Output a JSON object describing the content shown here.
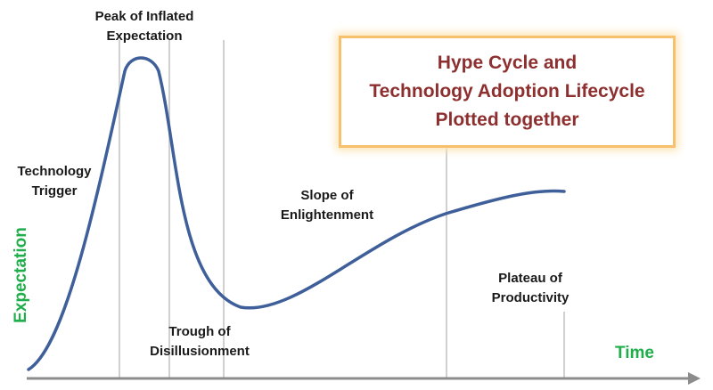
{
  "phases": {
    "peak": [
      "Peak of Inflated",
      "Expectation"
    ],
    "trigger": [
      "Technology",
      "Trigger"
    ],
    "trough": [
      "Trough of",
      "Disillusionment"
    ],
    "slope": [
      "Slope of",
      "Enlightenment"
    ],
    "plateau": [
      "Plateau of",
      "Productivity"
    ]
  },
  "title": [
    "Hype Cycle and",
    "Technology Adoption Lifecycle",
    "Plotted together"
  ],
  "axes": {
    "x": "Time",
    "y": "Expectation"
  },
  "colors": {
    "curve": "#3e5f99",
    "axis_titles": "#1fae4b",
    "title_text": "#8e2f2f",
    "title_border": "#f6c06c",
    "divider_lines": "#d0d0d0",
    "axis_line": "#8c8c8c"
  }
}
